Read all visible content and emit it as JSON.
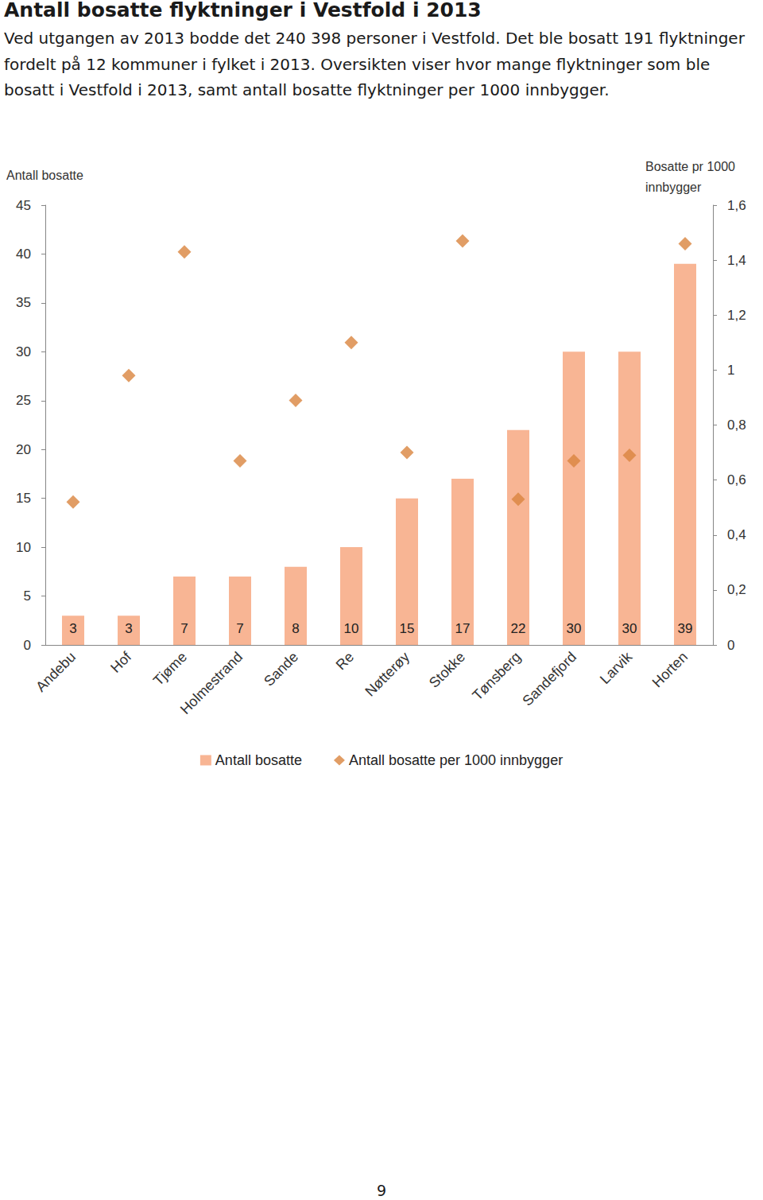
{
  "heading": "Antall bosatte flyktninger i Vestfold i 2013",
  "paragraph": "Ved utgangen av 2013 bodde det 240 398 personer i Vestfold. Det ble bosatt 191 flyktninger fordelt på 12 kommuner i fylket i 2013. Oversikten viser hvor mange flyktninger som ble bosatt i Vestfold i 2013, samt antall bosatte flyktninger per 1000 innbygger.",
  "page_number": "9",
  "chart_data": {
    "type": "bar",
    "ylabel": "Antall bosatte",
    "y2label": "Bosatte pr 1000 innbygger",
    "categories": [
      "Andebu",
      "Hof",
      "Tjøme",
      "Holmestrand",
      "Sande",
      "Re",
      "Nøtterøy",
      "Stokke",
      "Tønsberg",
      "Sandefjord",
      "Larvik",
      "Horten"
    ],
    "series": [
      {
        "name": "Antall bosatte",
        "type": "bar",
        "color": "#f8b594",
        "data_labels": true,
        "values": [
          3,
          3,
          7,
          7,
          8,
          10,
          15,
          17,
          22,
          30,
          30,
          39
        ]
      },
      {
        "name": "Antall bosatte per 1000 innbygger",
        "type": "scatter",
        "axis": "y2",
        "marker": "diamond",
        "color": "#d9853f",
        "values": [
          0.52,
          0.98,
          1.43,
          0.67,
          0.89,
          1.1,
          0.7,
          1.47,
          0.53,
          0.67,
          0.69,
          1.46
        ]
      }
    ],
    "ylim": [
      0,
      45
    ],
    "yticks": [
      0,
      5,
      10,
      15,
      20,
      25,
      30,
      35,
      40,
      45
    ],
    "y2lim": [
      0,
      1.6
    ],
    "y2ticks": [
      0,
      {
        "value": 0.2,
        "label": "0,2"
      },
      {
        "value": 0.4,
        "label": "0,4"
      },
      {
        "value": 0.6,
        "label": "0,6"
      },
      {
        "value": 0.8,
        "label": "0,8"
      },
      1,
      {
        "value": 1.2,
        "label": "1,2"
      },
      {
        "value": 1.4,
        "label": "1,4"
      },
      {
        "value": 1.6,
        "label": "1,6"
      }
    ],
    "grid": false,
    "legend": "bottom"
  }
}
